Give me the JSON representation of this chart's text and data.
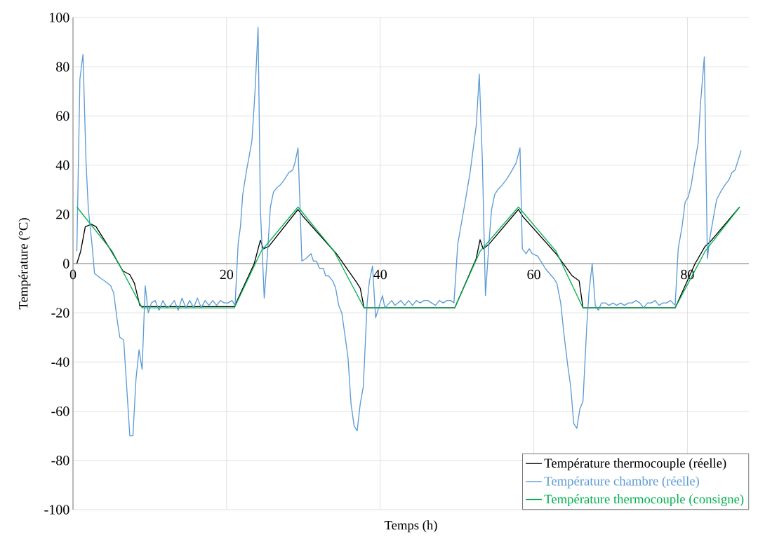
{
  "chart_data": {
    "type": "line",
    "xlabel": "Temps (h)",
    "ylabel": "Température (°C)",
    "xlim": [
      0,
      88
    ],
    "ylim": [
      -100,
      100
    ],
    "xticks": [
      0,
      20,
      40,
      60,
      80
    ],
    "yticks": [
      -100,
      -80,
      -60,
      -40,
      -20,
      0,
      20,
      40,
      60,
      80,
      100
    ],
    "grid": true,
    "legend": "bottom right",
    "series": [
      {
        "name": "Température thermocouple (réelle)",
        "color": "#000000",
        "x": [
          0.5,
          1.0,
          1.6,
          2.4,
          3.0,
          5.0,
          6.5,
          7.4,
          8.0,
          8.7,
          9.0,
          21.0,
          23.6,
          24.4,
          24.8,
          25.5,
          29.3,
          30.0,
          34.3,
          36.9,
          37.4,
          37.9,
          49.7,
          52.5,
          53.0,
          53.4,
          54.2,
          58.0,
          58.6,
          62.9,
          65.0,
          65.9,
          66.4,
          78.4,
          81.0,
          82.3,
          83.0,
          86.8
        ],
        "values": [
          0,
          5,
          15,
          16,
          15,
          5,
          -3,
          -4.5,
          -8,
          -17,
          -17.5,
          -17.5,
          0,
          9.5,
          6,
          7,
          22,
          19,
          4,
          -7.5,
          -10,
          -18,
          -18,
          2,
          9.7,
          6,
          8,
          22,
          19,
          4,
          -5,
          -7,
          -18,
          -18,
          0,
          7,
          9,
          23
        ]
      },
      {
        "name": "Température chambre (réelle)",
        "color": "#5b9bd5",
        "x": [
          0.5,
          0.9,
          1.3,
          1.7,
          2.0,
          2.5,
          2.8,
          3.6,
          4.1,
          4.9,
          5.3,
          5.8,
          6.1,
          6.6,
          7.4,
          7.8,
          8.2,
          8.6,
          9.0,
          9.4,
          9.8,
          10.2,
          10.7,
          11.2,
          11.7,
          12.2,
          12.7,
          13.2,
          13.7,
          14.2,
          14.7,
          15.2,
          15.7,
          16.2,
          16.7,
          17.2,
          17.7,
          18.2,
          18.7,
          19.2,
          19.7,
          20.2,
          20.7,
          21.1,
          21.5,
          21.8,
          22.1,
          22.6,
          22.9,
          23.3,
          23.7,
          24.1,
          24.4,
          24.9,
          25.3,
          25.7,
          26.1,
          26.6,
          27.0,
          27.5,
          28.1,
          28.6,
          28.9,
          29.3,
          29.8,
          30.3,
          31.0,
          31.3,
          31.7,
          32.1,
          32.6,
          32.9,
          33.3,
          33.8,
          34.2,
          34.6,
          35.0,
          35.8,
          36.2,
          36.6,
          37.0,
          37.4,
          37.8,
          38.3,
          38.6,
          39.0,
          39.4,
          39.8,
          40.3,
          40.6,
          41.5,
          41.9,
          42.7,
          43.2,
          43.7,
          44.2,
          44.7,
          45.2,
          45.7,
          46.2,
          46.7,
          47.2,
          47.7,
          48.2,
          48.7,
          49.2,
          49.6,
          50.1,
          51.0,
          51.7,
          52.5,
          52.9,
          53.3,
          53.7,
          54.2,
          54.5,
          54.9,
          55.3,
          55.9,
          56.4,
          57.0,
          57.7,
          58.2,
          58.5,
          59.0,
          59.4,
          59.8,
          60.5,
          60.9,
          61.5,
          62.3,
          62.6,
          63.0,
          63.5,
          63.9,
          64.4,
          64.8,
          65.2,
          65.6,
          66.0,
          66.4,
          66.9,
          67.2,
          67.6,
          68.0,
          68.4,
          68.8,
          69.3,
          69.8,
          70.3,
          70.8,
          71.3,
          71.8,
          72.3,
          72.8,
          73.3,
          73.8,
          74.3,
          74.8,
          75.3,
          75.8,
          76.3,
          76.8,
          77.3,
          77.8,
          78.4,
          78.8,
          79.3,
          79.7,
          80.1,
          80.5,
          80.9,
          81.4,
          81.7,
          82.2,
          82.6,
          82.9,
          83.4,
          83.8,
          84.3,
          84.9,
          85.4,
          85.8,
          86.2,
          87.0
        ],
        "values": [
          5,
          75,
          85,
          41,
          22,
          7,
          -4,
          -6,
          -7,
          -9,
          -12,
          -24,
          -30,
          -31,
          -70,
          -70,
          -47,
          -35,
          -43,
          -9,
          -20,
          -16,
          -15,
          -19,
          -15,
          -18,
          -17,
          -15,
          -19,
          -14,
          -18,
          -15,
          -18,
          -14,
          -18,
          -15,
          -17,
          -15,
          -17,
          -15,
          -16,
          -16,
          -15,
          -17,
          8,
          15,
          28,
          38,
          43,
          50,
          70,
          96,
          22,
          -14,
          3,
          23,
          29,
          31,
          32,
          34,
          37,
          38,
          41,
          47,
          1,
          2,
          4,
          1,
          1,
          -2,
          -2,
          -5,
          -5,
          -7,
          -10,
          -17,
          -20,
          -38,
          -57,
          -66,
          -68,
          -57,
          -50,
          -16,
          -7,
          -1,
          -22,
          -18,
          -13,
          -18,
          -15,
          -17,
          -15,
          -17,
          -15,
          -17,
          -15,
          -16,
          -15,
          -15,
          -16,
          -17,
          -15,
          -16,
          -15,
          -15,
          -16,
          8,
          24,
          37,
          56,
          77,
          42,
          -13,
          10,
          22,
          28,
          30,
          32,
          34,
          37,
          41,
          47,
          6,
          4,
          6,
          4,
          3,
          1,
          -2,
          -5,
          -6,
          -8,
          -16,
          -28,
          -41,
          -50,
          -65,
          -67,
          -59,
          -56,
          -25,
          -11,
          0,
          -17,
          -19,
          -16,
          -16,
          -17,
          -16,
          -17,
          -16,
          -17,
          -16,
          -16,
          -15,
          -16,
          -18,
          -16,
          -16,
          -15,
          -17,
          -16,
          -16,
          -15,
          -17,
          6,
          15,
          25,
          27,
          32,
          40,
          49,
          65,
          84,
          2,
          10,
          19,
          26,
          29,
          32,
          34,
          37,
          38,
          46
        ]
      },
      {
        "name": "Température thermocouple (consigne)",
        "color": "#00b050",
        "x": [
          0.5,
          5.1,
          9.0,
          21.0,
          24.5,
          29.3,
          34.0,
          37.9,
          49.7,
          53.0,
          58.0,
          62.9,
          66.4,
          78.4,
          82.3,
          86.8
        ],
        "values": [
          23,
          5,
          -18,
          -18,
          5,
          23,
          5,
          -18,
          -18,
          5,
          23,
          5,
          -18,
          -18,
          5,
          23
        ]
      }
    ]
  }
}
